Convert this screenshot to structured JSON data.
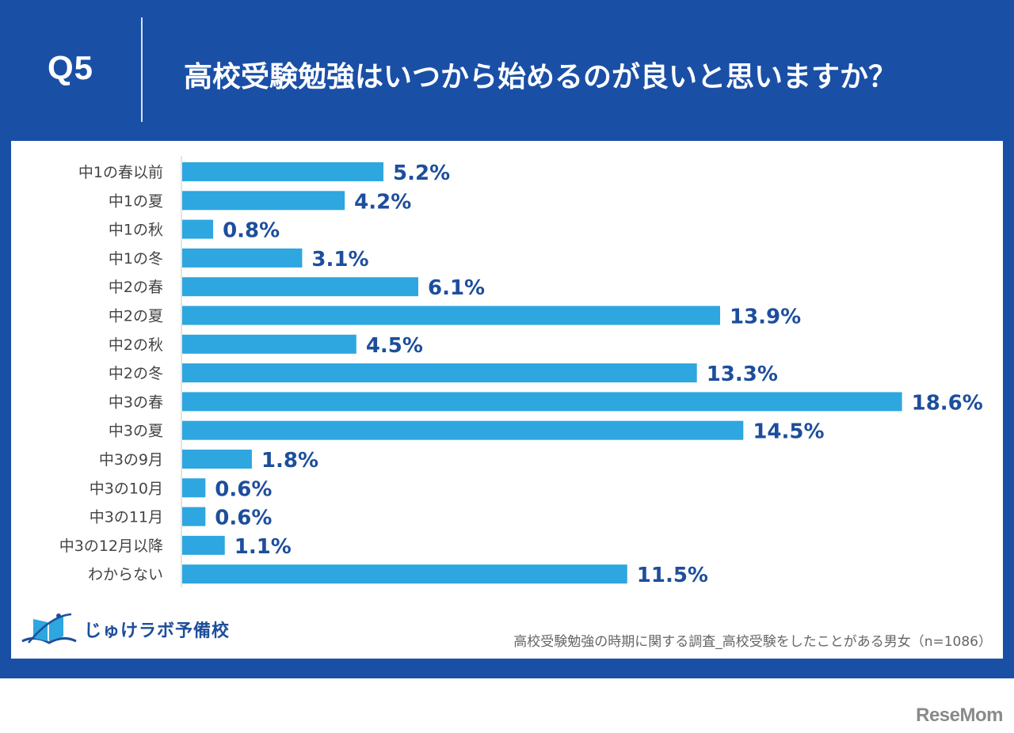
{
  "header": {
    "question_number": "Q5",
    "title": "高校受験勉強はいつから始めるのが良いと思いますか？"
  },
  "colors": {
    "frame": "#1a4fa6",
    "bar": "#2ea6df",
    "value_label": "#1d4e9c",
    "category_label": "#444444"
  },
  "chart_data": {
    "type": "bar",
    "orientation": "horizontal",
    "title": "高校受験勉強はいつから始めるのが良いと思いますか？",
    "xlabel": "",
    "ylabel": "",
    "unit": "%",
    "xlim": [
      0,
      20
    ],
    "grid": false,
    "legend": null,
    "categories": [
      "中1の春以前",
      "中1の夏",
      "中1の秋",
      "中1の冬",
      "中2の春",
      "中2の夏",
      "中2の秋",
      "中2の冬",
      "中3の春",
      "中3の夏",
      "中3の9月",
      "中3の10月",
      "中3の11月",
      "中3の12月以降",
      "わからない"
    ],
    "values": [
      5.2,
      4.2,
      0.8,
      3.1,
      6.1,
      13.9,
      4.5,
      13.3,
      18.6,
      14.5,
      1.8,
      0.6,
      0.6,
      1.1,
      11.5
    ],
    "value_labels": [
      "5.2%",
      "4.2%",
      "0.8%",
      "3.1%",
      "6.1%",
      "13.9%",
      "4.5%",
      "13.3%",
      "18.6%",
      "14.5%",
      "1.8%",
      "0.6%",
      "0.6%",
      "1.1%",
      "11.5%"
    ]
  },
  "footer": {
    "logo_text": "じゅけラボ予備校",
    "source": "高校受験勉強の時期に関する調査_高校受験をしたことがある男女（n=1086）"
  },
  "watermark": "ReseMom"
}
